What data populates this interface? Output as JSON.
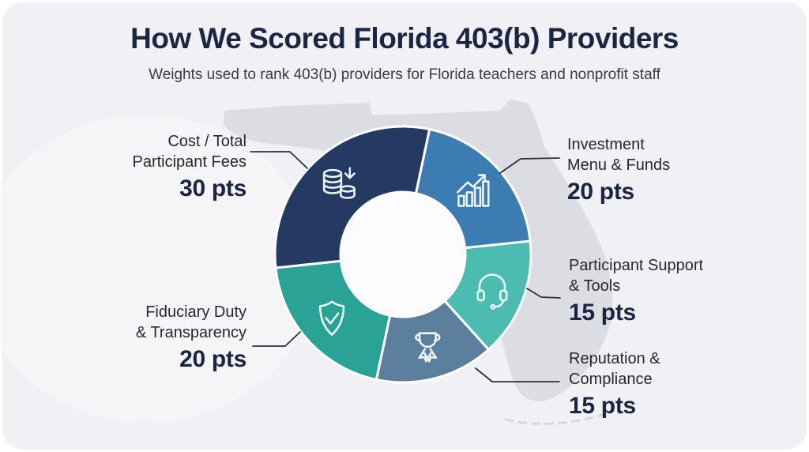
{
  "header": {
    "title": "How We Scored Florida 403(b) Providers",
    "subtitle": "Weights used to rank 403(b) providers for Florida teachers and nonprofit staff"
  },
  "chart_data": {
    "type": "pie",
    "subtype": "donut",
    "title": "How We Scored Florida 403(b) Providers",
    "units": "pts",
    "total": 100,
    "rotation_deg_from_north": 12,
    "background_motif": "florida-map-silhouette",
    "hole_color": "#fcfcfe",
    "separator_color": "#ffffff",
    "segments": [
      {
        "id": "investment-menu-funds",
        "label_line1": "Investment",
        "label_line2": "Menu & Funds",
        "value": 20,
        "points_label": "20 pts",
        "color": "#3c7cb2",
        "icon": "bar-chart-growth-icon"
      },
      {
        "id": "participant-support-tools",
        "label_line1": "Participant Support",
        "label_line2": "& Tools",
        "value": 15,
        "points_label": "15 pts",
        "color": "#4cbcb1",
        "icon": "headset-icon"
      },
      {
        "id": "reputation-compliance",
        "label_line1": "Reputation &",
        "label_line2": "Compliance",
        "value": 15,
        "points_label": "15 pts",
        "color": "#5d7f9e",
        "icon": "award-ribbon-icon"
      },
      {
        "id": "fiduciary-transparency",
        "label_line1": "Fiduciary Duty",
        "label_line2": "& Transparency",
        "value": 20,
        "points_label": "20 pts",
        "color": "#2aa396",
        "icon": "shield-check-icon"
      },
      {
        "id": "cost-total-participant-fees",
        "label_line1": "Cost / Total",
        "label_line2": "Participant Fees",
        "value": 30,
        "points_label": "30 pts",
        "color": "#253a63",
        "icon": "coins-icon"
      }
    ]
  },
  "colors": {
    "card_background": "#f1f1f5",
    "map_silhouette": "#dcdde2",
    "title_text": "#1b2642",
    "subtitle_text": "#363b45",
    "label_text": "#24282f",
    "points_text": "#1b2440",
    "connector_line": "#2c313b",
    "icon_stroke": "#eef7f8"
  }
}
